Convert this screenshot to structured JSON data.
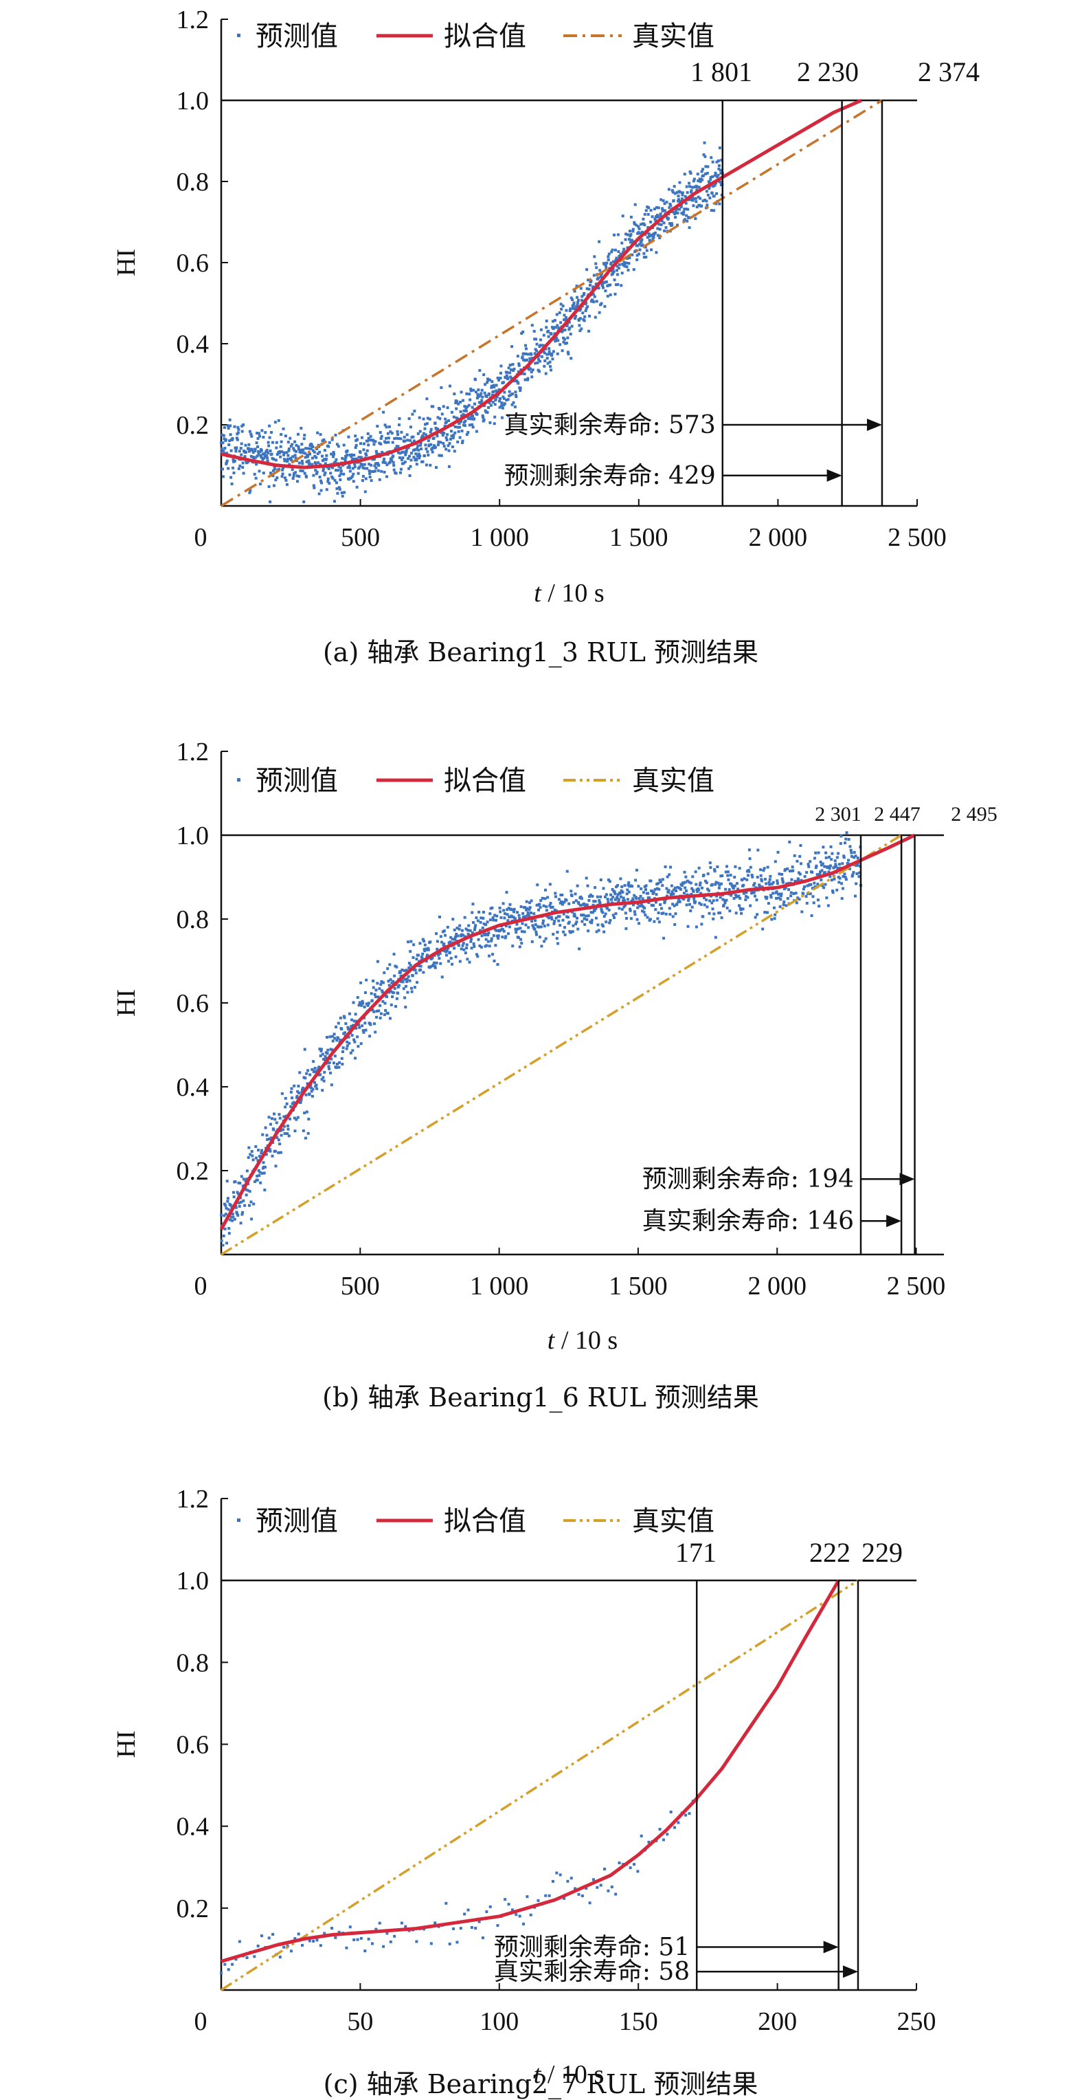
{
  "chart_data": [
    {
      "id": "a",
      "type": "scatter",
      "caption": "(a) 轴承 Bearing1_3 RUL 预测结果",
      "xlabel_italic": "t",
      "xlabel_rest": " / 10 s",
      "ylabel": "HI",
      "xlim": [
        0,
        2500
      ],
      "ylim": [
        0,
        1.2
      ],
      "xticks": [
        0,
        500,
        1000,
        1500,
        2000,
        2500
      ],
      "xtick_labels": [
        "0",
        "500",
        "1 000",
        "1 500",
        "2 000",
        "2 500"
      ],
      "yticks": [
        0.2,
        0.4,
        0.6,
        0.8,
        1.0,
        1.2
      ],
      "ytick_labels": [
        "0.2",
        "0.4",
        "0.6",
        "0.8",
        "1.0",
        "1.2"
      ],
      "legend": [
        "预测值",
        "拟合值",
        "真实值"
      ],
      "threshold": 1.0,
      "markers": [
        {
          "x": 1801,
          "label": "1 801"
        },
        {
          "x": 2230,
          "label": "2 230"
        },
        {
          "x": 2374,
          "label": "2 374"
        }
      ],
      "annotations": [
        {
          "text": "真实剩余寿命: 573",
          "y": 0.2,
          "x_from": 1801,
          "x_to": 2374
        },
        {
          "text": "预测剩余寿命: 429",
          "y": 0.075,
          "x_from": 1801,
          "x_to": 2230
        }
      ],
      "scatter_range": [
        0,
        1801
      ],
      "fit_curve": [
        [
          0,
          0.128
        ],
        [
          100,
          0.113
        ],
        [
          200,
          0.1
        ],
        [
          300,
          0.095
        ],
        [
          400,
          0.1
        ],
        [
          500,
          0.112
        ],
        [
          600,
          0.13
        ],
        [
          700,
          0.155
        ],
        [
          800,
          0.19
        ],
        [
          900,
          0.23
        ],
        [
          1000,
          0.28
        ],
        [
          1100,
          0.345
        ],
        [
          1200,
          0.42
        ],
        [
          1300,
          0.5
        ],
        [
          1400,
          0.585
        ],
        [
          1500,
          0.66
        ],
        [
          1600,
          0.72
        ],
        [
          1700,
          0.77
        ],
        [
          1800,
          0.81
        ],
        [
          1900,
          0.85
        ],
        [
          2000,
          0.89
        ],
        [
          2100,
          0.93
        ],
        [
          2200,
          0.97
        ],
        [
          2300,
          1.0
        ]
      ],
      "true_line": [
        [
          0,
          0.0
        ],
        [
          2374,
          1.0
        ]
      ],
      "fit_color": "#d4293d",
      "true_color": "#c8742a",
      "scatter_color": "#3d74c0",
      "true_dash": "dashdot"
    },
    {
      "id": "b",
      "type": "scatter",
      "caption": "(b) 轴承 Bearing1_6 RUL 预测结果",
      "xlabel_italic": "t",
      "xlabel_rest": " / 10 s",
      "ylabel": "HI",
      "xlim": [
        0,
        2600
      ],
      "ylim": [
        0,
        1.2
      ],
      "xticks": [
        0,
        500,
        1000,
        1500,
        2000,
        2500
      ],
      "xtick_labels": [
        "0",
        "500",
        "1 000",
        "1 500",
        "2 000",
        "2 500"
      ],
      "yticks": [
        0.2,
        0.4,
        0.6,
        0.8,
        1.0,
        1.2
      ],
      "ytick_labels": [
        "0.2",
        "0.4",
        "0.6",
        "0.8",
        "1.0",
        "1.2"
      ],
      "legend": [
        "预测值",
        "拟合值",
        "真实值"
      ],
      "threshold": 1.0,
      "markers": [
        {
          "x": 2301,
          "label": "2 301"
        },
        {
          "x": 2447,
          "label": "2 447"
        },
        {
          "x": 2495,
          "label": "2 495"
        }
      ],
      "annotations": [
        {
          "text": "预测剩余寿命: 194",
          "y": 0.18,
          "x_from": 2301,
          "x_to": 2495
        },
        {
          "text": "真实剩余寿命: 146",
          "y": 0.08,
          "x_from": 2301,
          "x_to": 2447
        }
      ],
      "scatter_range": [
        0,
        2301
      ],
      "fit_curve": [
        [
          0,
          0.06
        ],
        [
          100,
          0.18
        ],
        [
          200,
          0.29
        ],
        [
          300,
          0.39
        ],
        [
          400,
          0.48
        ],
        [
          500,
          0.56
        ],
        [
          600,
          0.63
        ],
        [
          700,
          0.69
        ],
        [
          800,
          0.73
        ],
        [
          900,
          0.76
        ],
        [
          1000,
          0.785
        ],
        [
          1100,
          0.8
        ],
        [
          1200,
          0.815
        ],
        [
          1300,
          0.825
        ],
        [
          1400,
          0.835
        ],
        [
          1500,
          0.84
        ],
        [
          1600,
          0.85
        ],
        [
          1700,
          0.855
        ],
        [
          1800,
          0.86
        ],
        [
          1900,
          0.87
        ],
        [
          2000,
          0.875
        ],
        [
          2100,
          0.89
        ],
        [
          2200,
          0.91
        ],
        [
          2300,
          0.94
        ],
        [
          2400,
          0.97
        ],
        [
          2495,
          1.0
        ]
      ],
      "true_line": [
        [
          0,
          0.0
        ],
        [
          2447,
          1.0
        ]
      ],
      "fit_color": "#d4293d",
      "true_color": "#d4a02a",
      "scatter_color": "#3d74c0",
      "true_dash": "dashdotdot"
    },
    {
      "id": "c",
      "type": "scatter",
      "caption": "(c) 轴承 Bearing2_7 RUL 预测结果",
      "xlabel_italic": "t",
      "xlabel_rest": " / 10 s",
      "ylabel": "HI",
      "xlim": [
        0,
        250
      ],
      "ylim": [
        0,
        1.2
      ],
      "xticks": [
        0,
        50,
        100,
        150,
        200,
        250
      ],
      "xtick_labels": [
        "0",
        "50",
        "100",
        "150",
        "200",
        "250"
      ],
      "yticks": [
        0.2,
        0.4,
        0.6,
        0.8,
        1.0,
        1.2
      ],
      "ytick_labels": [
        "0.2",
        "0.4",
        "0.6",
        "0.8",
        "1.0",
        "1.2"
      ],
      "legend": [
        "预测值",
        "拟合值",
        "真实值"
      ],
      "threshold": 1.0,
      "markers": [
        {
          "x": 171,
          "label": "171"
        },
        {
          "x": 222,
          "label": "222"
        },
        {
          "x": 229,
          "label": "229"
        }
      ],
      "annotations": [
        {
          "text": "预测剩余寿命: 51",
          "y": 0.105,
          "x_from": 171,
          "x_to": 222
        },
        {
          "text": "真实剩余寿命: 58",
          "y": 0.045,
          "x_from": 171,
          "x_to": 229
        }
      ],
      "scatter_range": [
        0,
        171
      ],
      "fit_curve": [
        [
          0,
          0.07
        ],
        [
          10,
          0.09
        ],
        [
          20,
          0.11
        ],
        [
          30,
          0.125
        ],
        [
          40,
          0.135
        ],
        [
          50,
          0.14
        ],
        [
          60,
          0.145
        ],
        [
          70,
          0.15
        ],
        [
          80,
          0.16
        ],
        [
          90,
          0.17
        ],
        [
          100,
          0.18
        ],
        [
          110,
          0.2
        ],
        [
          120,
          0.22
        ],
        [
          130,
          0.25
        ],
        [
          140,
          0.28
        ],
        [
          150,
          0.33
        ],
        [
          160,
          0.39
        ],
        [
          170,
          0.46
        ],
        [
          180,
          0.54
        ],
        [
          190,
          0.64
        ],
        [
          200,
          0.74
        ],
        [
          210,
          0.86
        ],
        [
          222,
          1.0
        ]
      ],
      "true_line": [
        [
          0,
          0.0
        ],
        [
          229,
          1.0
        ]
      ],
      "fit_color": "#d4293d",
      "true_color": "#d4a02a",
      "scatter_color": "#3d74c0",
      "true_dash": "dashdotdot"
    }
  ]
}
